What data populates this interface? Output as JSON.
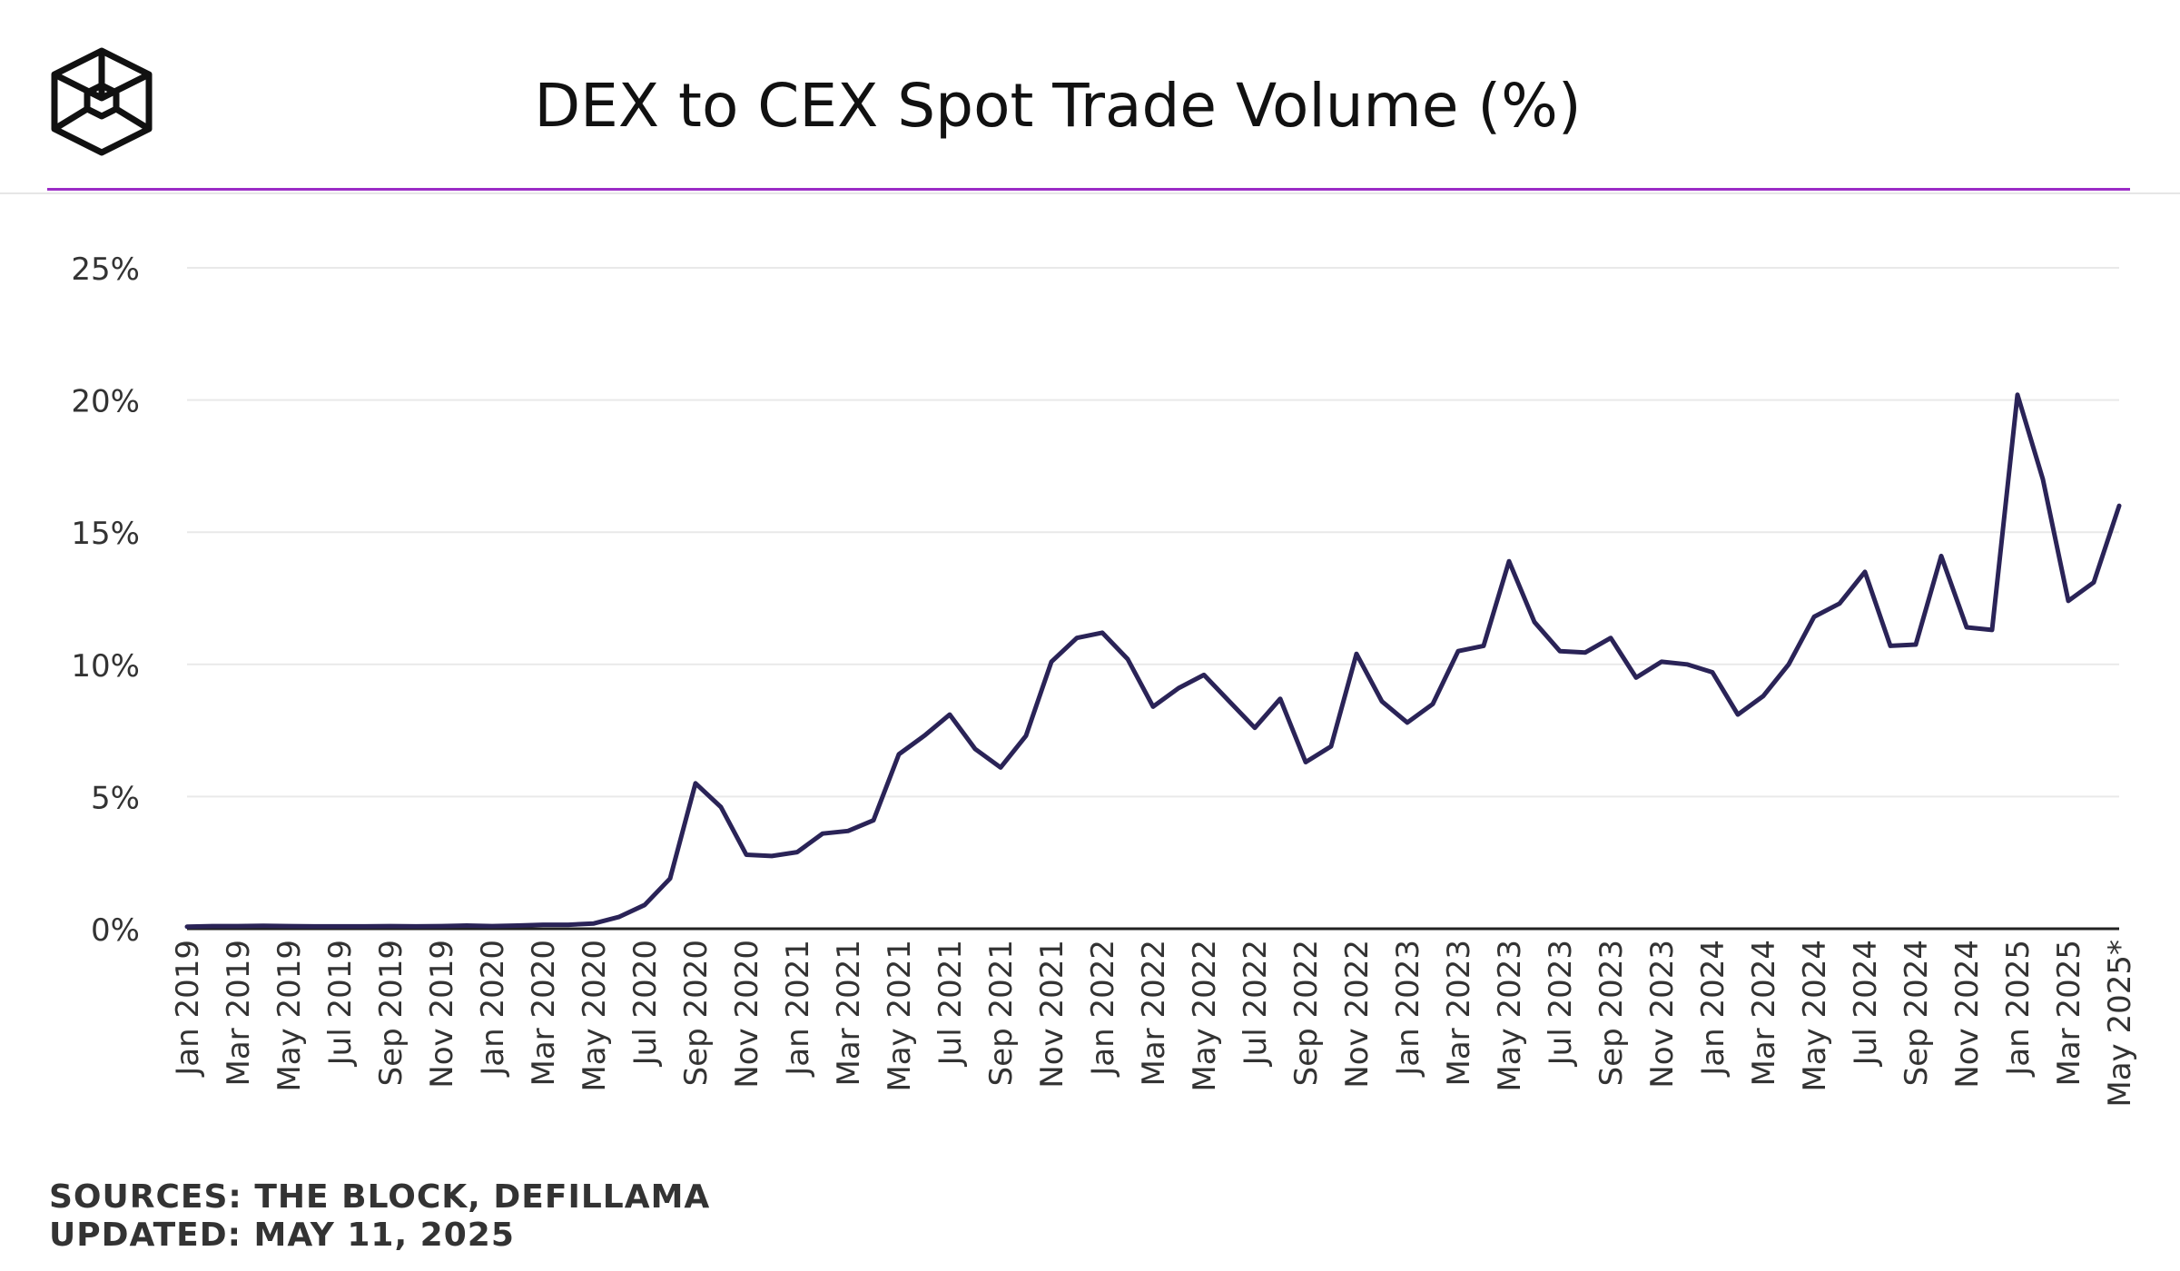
{
  "title": "DEX to CEX Spot Trade Volume (%)",
  "footer": {
    "sources": "SOURCES: THE BLOCK, DEFILLAMA",
    "updated": "UPDATED: MAY 11, 2025"
  },
  "colors": {
    "line": "#2a2357",
    "accent": "#9b2cc6",
    "grid": "#e9e9e9",
    "axis": "#222222"
  },
  "chart_data": {
    "type": "line",
    "title": "DEX to CEX Spot Trade Volume (%)",
    "xlabel": "",
    "ylabel": "",
    "ylim": [
      0,
      25
    ],
    "yticks": [
      "0%",
      "5%",
      "10%",
      "15%",
      "20%",
      "25%"
    ],
    "grid": true,
    "xtick_labels": [
      "Jan 2019",
      "Mar 2019",
      "May 2019",
      "Jul 2019",
      "Sep 2019",
      "Nov 2019",
      "Jan 2020",
      "Mar 2020",
      "May 2020",
      "Jul 2020",
      "Sep 2020",
      "Nov 2020",
      "Jan 2021",
      "Mar 2021",
      "May 2021",
      "Jul 2021",
      "Sep 2021",
      "Nov 2021",
      "Jan 2022",
      "Mar 2022",
      "May 2022",
      "Jul 2022",
      "Sep 2022",
      "Nov 2022",
      "Jan 2023",
      "Mar 2023",
      "May 2023",
      "Jul 2023",
      "Sep 2023",
      "Nov 2023",
      "Jan 2024",
      "Mar 2024",
      "May 2024",
      "Jul 2024",
      "Sep 2024",
      "Nov 2024",
      "Jan 2025",
      "Mar 2025",
      "May 2025*"
    ],
    "x": [
      "Jan 2019",
      "Feb 2019",
      "Mar 2019",
      "Apr 2019",
      "May 2019",
      "Jun 2019",
      "Jul 2019",
      "Aug 2019",
      "Sep 2019",
      "Oct 2019",
      "Nov 2019",
      "Dec 2019",
      "Jan 2020",
      "Feb 2020",
      "Mar 2020",
      "Apr 2020",
      "May 2020",
      "Jun 2020",
      "Jul 2020",
      "Aug 2020",
      "Sep 2020",
      "Oct 2020",
      "Nov 2020",
      "Dec 2020",
      "Jan 2021",
      "Feb 2021",
      "Mar 2021",
      "Apr 2021",
      "May 2021",
      "Jun 2021",
      "Jul 2021",
      "Aug 2021",
      "Sep 2021",
      "Oct 2021",
      "Nov 2021",
      "Dec 2021",
      "Jan 2022",
      "Feb 2022",
      "Mar 2022",
      "Apr 2022",
      "May 2022",
      "Jun 2022",
      "Jul 2022",
      "Aug 2022",
      "Sep 2022",
      "Oct 2022",
      "Nov 2022",
      "Dec 2022",
      "Jan 2023",
      "Feb 2023",
      "Mar 2023",
      "Apr 2023",
      "May 2023",
      "Jun 2023",
      "Jul 2023",
      "Aug 2023",
      "Sep 2023",
      "Oct 2023",
      "Nov 2023",
      "Dec 2023",
      "Jan 2024",
      "Feb 2024",
      "Mar 2024",
      "Apr 2024",
      "May 2024",
      "Jun 2024",
      "Jul 2024",
      "Aug 2024",
      "Sep 2024",
      "Oct 2024",
      "Nov 2024",
      "Dec 2024",
      "Jan 2025",
      "Feb 2025",
      "Mar 2025",
      "Apr 2025",
      "May 2025*"
    ],
    "series": [
      {
        "values": [
          0.08,
          0.1,
          0.1,
          0.11,
          0.1,
          0.09,
          0.09,
          0.09,
          0.1,
          0.09,
          0.1,
          0.12,
          0.1,
          0.12,
          0.15,
          0.15,
          0.2,
          0.45,
          0.9,
          1.9,
          5.5,
          4.6,
          2.8,
          2.75,
          2.9,
          3.6,
          3.7,
          4.1,
          6.6,
          7.3,
          8.1,
          6.8,
          6.1,
          7.3,
          10.1,
          11.0,
          11.2,
          10.2,
          8.4,
          9.1,
          9.6,
          8.6,
          7.6,
          8.7,
          6.3,
          6.9,
          10.4,
          8.6,
          7.8,
          8.5,
          10.5,
          10.7,
          13.9,
          11.6,
          10.5,
          10.45,
          11.0,
          9.5,
          10.1,
          10.0,
          9.7,
          8.1,
          8.8,
          10.0,
          11.8,
          12.3,
          13.5,
          10.7,
          10.75,
          14.1,
          11.4,
          11.3,
          20.2,
          17.0,
          12.4,
          13.1,
          16.0
        ]
      }
    ]
  }
}
